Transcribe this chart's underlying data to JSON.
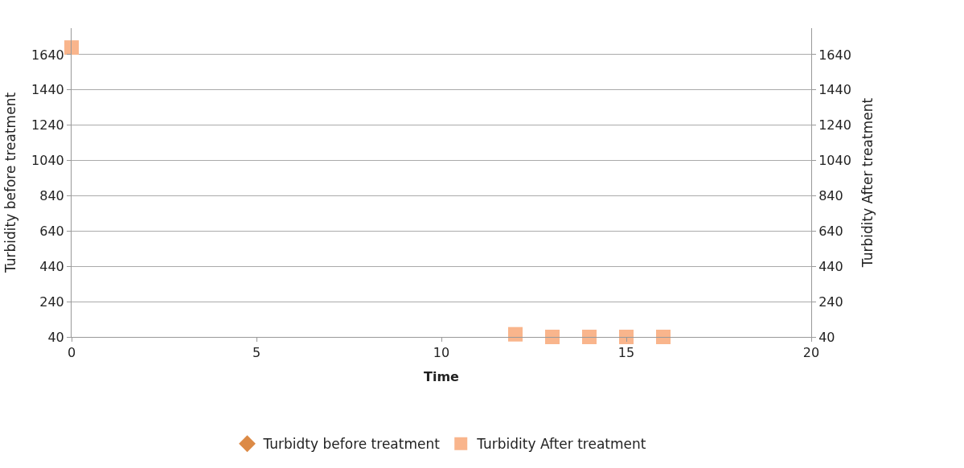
{
  "chart_data": {
    "type": "scatter",
    "xlabel": "Time",
    "ylabel": "Turbidity before treatment",
    "y2label": "Turbidity After treatment",
    "x": [
      0,
      12,
      13,
      14,
      15,
      16
    ],
    "series": [
      {
        "name": "Turbidty before treatment",
        "color": "#dc8a46",
        "marker": "diamond",
        "values": [
          null,
          null,
          null,
          null,
          null,
          null
        ]
      },
      {
        "name": "Turbidity After treatment",
        "color": "#f9b58c",
        "marker": "square",
        "axis": "y2",
        "values": [
          1680,
          55,
          40,
          40,
          40,
          40
        ]
      }
    ],
    "xlim": [
      0,
      20
    ],
    "xticks": [
      0,
      5,
      10,
      15,
      20
    ],
    "ylim": [
      40,
      1790
    ],
    "yticks": [
      40,
      240,
      440,
      640,
      840,
      1040,
      1240,
      1440,
      1640
    ],
    "y2lim": [
      40,
      1790
    ],
    "y2ticks": [
      40,
      240,
      440,
      640,
      840,
      1040,
      1240,
      1440,
      1640
    ],
    "grid": "y",
    "legend": "bottom"
  }
}
